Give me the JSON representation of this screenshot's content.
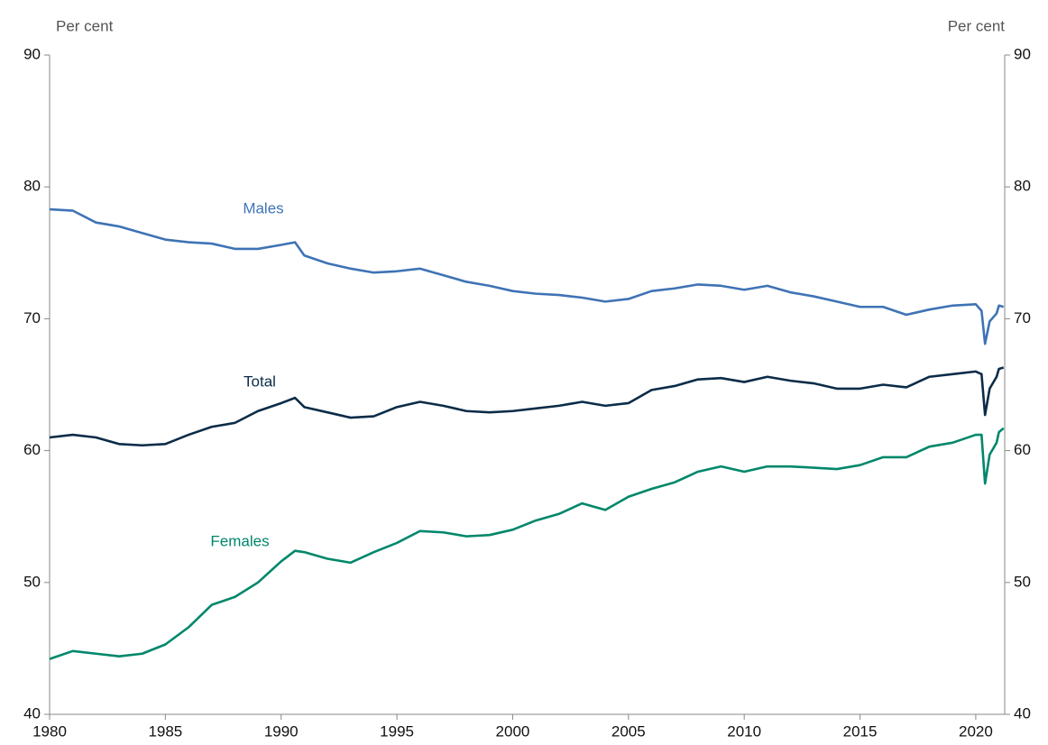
{
  "chart_data": {
    "type": "line",
    "y_label": "Per cent",
    "y2_label": "Per cent",
    "x": [
      1980,
      1981,
      1982,
      1983,
      1984,
      1985,
      1986,
      1987,
      1988,
      1989,
      1990,
      1990.6,
      1991,
      1992,
      1993,
      1994,
      1995,
      1996,
      1997,
      1998,
      1999,
      2000,
      2001,
      2002,
      2003,
      2004,
      2005,
      2006,
      2007,
      2008,
      2009,
      2010,
      2011,
      2012,
      2013,
      2014,
      2015,
      2016,
      2017,
      2018,
      2019,
      2020,
      2020.25,
      2020.4,
      2020.6,
      2020.9,
      2021,
      2021.2
    ],
    "series": [
      {
        "name": "Males",
        "color": "#3f73b5",
        "values": [
          78.3,
          78.2,
          77.3,
          77.0,
          76.5,
          76.0,
          75.8,
          75.7,
          75.3,
          75.3,
          75.6,
          75.8,
          74.8,
          74.2,
          73.8,
          73.5,
          73.6,
          73.8,
          73.3,
          72.8,
          72.5,
          72.1,
          71.9,
          71.8,
          71.6,
          71.3,
          71.5,
          72.1,
          72.3,
          72.6,
          72.5,
          72.2,
          72.5,
          72.0,
          71.7,
          71.3,
          70.9,
          70.9,
          70.3,
          70.7,
          71.0,
          71.1,
          70.6,
          68.1,
          69.8,
          70.4,
          71.0,
          70.9
        ]
      },
      {
        "name": "Total",
        "color": "#0b2c48",
        "values": [
          61.0,
          61.2,
          61.0,
          60.5,
          60.4,
          60.5,
          61.2,
          61.8,
          62.1,
          63.0,
          63.6,
          64.0,
          63.3,
          62.9,
          62.5,
          62.6,
          63.3,
          63.7,
          63.4,
          63.0,
          62.9,
          63.0,
          63.2,
          63.4,
          63.7,
          63.4,
          63.6,
          64.6,
          64.9,
          65.4,
          65.5,
          65.2,
          65.6,
          65.3,
          65.1,
          64.7,
          64.7,
          65.0,
          64.8,
          65.6,
          65.8,
          66.0,
          65.8,
          62.7,
          64.7,
          65.6,
          66.2,
          66.3
        ]
      },
      {
        "name": "Females",
        "color": "#00876b",
        "values": [
          44.2,
          44.8,
          44.6,
          44.4,
          44.6,
          45.3,
          46.6,
          48.3,
          48.9,
          50.0,
          51.6,
          52.4,
          52.3,
          51.8,
          51.5,
          52.3,
          53.0,
          53.9,
          53.8,
          53.5,
          53.6,
          54.0,
          54.7,
          55.2,
          56.0,
          55.5,
          56.5,
          57.1,
          57.6,
          58.4,
          58.8,
          58.4,
          58.8,
          58.8,
          58.7,
          58.6,
          58.9,
          59.5,
          59.5,
          60.3,
          60.6,
          61.2,
          61.2,
          57.5,
          59.7,
          60.6,
          61.4,
          61.7
        ]
      }
    ],
    "xlim": [
      1980,
      2021.25
    ],
    "xticks": [
      1980,
      1985,
      1990,
      1995,
      2000,
      2005,
      2010,
      2015,
      2020
    ],
    "ylim": [
      40,
      90
    ],
    "yticks": [
      40,
      50,
      60,
      70,
      80,
      90
    ],
    "y2lim": [
      40,
      90
    ],
    "y2ticks": [
      40,
      50,
      60,
      70,
      80,
      90
    ],
    "grid": false
  }
}
